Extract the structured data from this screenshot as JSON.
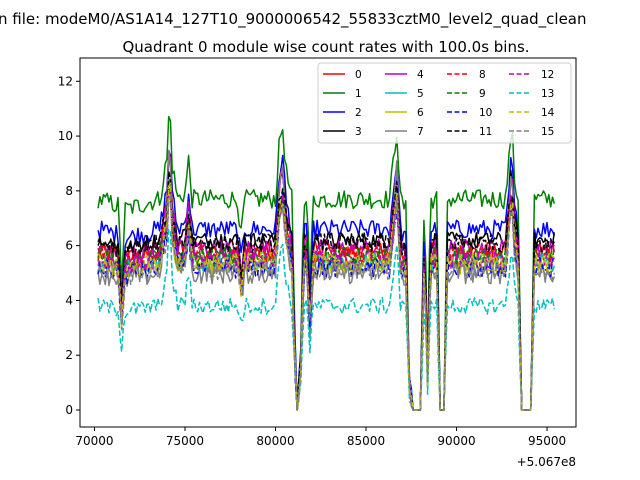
{
  "chart_data": {
    "type": "line",
    "suptitle": "n file: modeM0/AS1A14_127T10_9000006542_55833cztM0_level2_quad_clean",
    "title": "Quadrant 0 module wise count rates with 100.0s bins.",
    "xlabel": "",
    "ylabel": "",
    "x_offset_label": "+5.067e8",
    "xlim": [
      69200,
      96600
    ],
    "ylim": [
      -0.62,
      12.85
    ],
    "x_ticks": [
      70000,
      75000,
      80000,
      85000,
      90000,
      95000
    ],
    "x_tick_labels": [
      "70000",
      "75000",
      "80000",
      "85000",
      "90000",
      "95000"
    ],
    "y_ticks": [
      0,
      2,
      4,
      6,
      8,
      10,
      12
    ],
    "y_tick_labels": [
      "0",
      "2",
      "4",
      "6",
      "8",
      "10",
      "12"
    ],
    "legend_position": "top-right",
    "legend_columns": 4,
    "x_start": 70200,
    "x_end": 95400,
    "bin_size_s": 100,
    "profile_points": [
      {
        "x": 70200,
        "f": 1.0
      },
      {
        "x": 71300,
        "f": 0.97
      },
      {
        "x": 71500,
        "f": 0.62
      },
      {
        "x": 71700,
        "f": 0.95
      },
      {
        "x": 73600,
        "f": 1.0
      },
      {
        "x": 74050,
        "f": 1.35
      },
      {
        "x": 74150,
        "f": 1.9
      },
      {
        "x": 74250,
        "f": 1.3
      },
      {
        "x": 74600,
        "f": 1.0
      },
      {
        "x": 75000,
        "f": 1.05
      },
      {
        "x": 75200,
        "f": 1.3
      },
      {
        "x": 75400,
        "f": 1.0
      },
      {
        "x": 77900,
        "f": 1.0
      },
      {
        "x": 78100,
        "f": 0.82
      },
      {
        "x": 78300,
        "f": 1.0
      },
      {
        "x": 80000,
        "f": 1.0
      },
      {
        "x": 80250,
        "f": 1.5
      },
      {
        "x": 80400,
        "f": 1.55
      },
      {
        "x": 80600,
        "f": 1.2
      },
      {
        "x": 80900,
        "f": 1.0
      },
      {
        "x": 81050,
        "f": 0.4
      },
      {
        "x": 81200,
        "f": 0.0
      },
      {
        "x": 81400,
        "f": 0.3
      },
      {
        "x": 81550,
        "f": 1.0
      },
      {
        "x": 81700,
        "f": 1.05
      },
      {
        "x": 81900,
        "f": 0.6
      },
      {
        "x": 82100,
        "f": 1.0
      },
      {
        "x": 86300,
        "f": 1.0
      },
      {
        "x": 86550,
        "f": 1.35
      },
      {
        "x": 86700,
        "f": 1.55
      },
      {
        "x": 86900,
        "f": 1.0
      },
      {
        "x": 87200,
        "f": 0.95
      },
      {
        "x": 87400,
        "f": 0.15
      },
      {
        "x": 87600,
        "f": 0.0
      },
      {
        "x": 88000,
        "f": 0.0
      },
      {
        "x": 88200,
        "f": 0.9
      },
      {
        "x": 88300,
        "f": 0.7
      },
      {
        "x": 88400,
        "f": 0.2
      },
      {
        "x": 88550,
        "f": 1.0
      },
      {
        "x": 88900,
        "f": 1.0
      },
      {
        "x": 89100,
        "f": 0.0
      },
      {
        "x": 89300,
        "f": 0.0
      },
      {
        "x": 89500,
        "f": 1.0
      },
      {
        "x": 92700,
        "f": 1.0
      },
      {
        "x": 92900,
        "f": 1.3
      },
      {
        "x": 93050,
        "f": 1.6
      },
      {
        "x": 93200,
        "f": 1.15
      },
      {
        "x": 93400,
        "f": 1.0
      },
      {
        "x": 93600,
        "f": 0.0
      },
      {
        "x": 94100,
        "f": 0.0
      },
      {
        "x": 94300,
        "f": 1.0
      },
      {
        "x": 95400,
        "f": 1.0
      }
    ],
    "series": [
      {
        "name": "0",
        "color": "#ff0000",
        "dash": "solid",
        "base": 5.8,
        "noise": 0.35,
        "peak": 10.8
      },
      {
        "name": "1",
        "color": "#008000",
        "dash": "solid",
        "base": 7.7,
        "noise": 0.35,
        "peak": 11.9
      },
      {
        "name": "2",
        "color": "#0000ff",
        "dash": "solid",
        "base": 6.6,
        "noise": 0.35,
        "peak": 10.8
      },
      {
        "name": "3",
        "color": "#000000",
        "dash": "solid",
        "base": 6.2,
        "noise": 0.3,
        "peak": 10.5
      },
      {
        "name": "4",
        "color": "#bf00bf",
        "dash": "solid",
        "base": 5.9,
        "noise": 0.35,
        "peak": 10.9
      },
      {
        "name": "5",
        "color": "#00bfbf",
        "dash": "solid",
        "base": 5.4,
        "noise": 0.35,
        "peak": 9.5
      },
      {
        "name": "6",
        "color": "#bfbf00",
        "dash": "solid",
        "base": 5.3,
        "noise": 0.35,
        "peak": 9.0
      },
      {
        "name": "7",
        "color": "#808080",
        "dash": "solid",
        "base": 5.0,
        "noise": 0.4,
        "peak": 11.3
      },
      {
        "name": "8",
        "color": "#ff0000",
        "dash": "dashed",
        "base": 5.7,
        "noise": 0.35,
        "peak": 9.2
      },
      {
        "name": "9",
        "color": "#008000",
        "dash": "dashed",
        "base": 5.6,
        "noise": 0.35,
        "peak": 9.2
      },
      {
        "name": "10",
        "color": "#0000ff",
        "dash": "dashed",
        "base": 5.2,
        "noise": 0.4,
        "peak": 9.0
      },
      {
        "name": "11",
        "color": "#000000",
        "dash": "dashed",
        "base": 6.1,
        "noise": 0.35,
        "peak": 9.4
      },
      {
        "name": "12",
        "color": "#bf00bf",
        "dash": "dashed",
        "base": 5.5,
        "noise": 0.35,
        "peak": 9.0
      },
      {
        "name": "13",
        "color": "#00bfbf",
        "dash": "dashed",
        "base": 3.8,
        "noise": 0.3,
        "peak": 7.5
      },
      {
        "name": "14",
        "color": "#bfbf00",
        "dash": "dashed",
        "base": 5.4,
        "noise": 0.35,
        "peak": 9.3
      },
      {
        "name": "15",
        "color": "#808080",
        "dash": "dashed",
        "base": 5.1,
        "noise": 0.35,
        "peak": 8.8
      }
    ]
  }
}
